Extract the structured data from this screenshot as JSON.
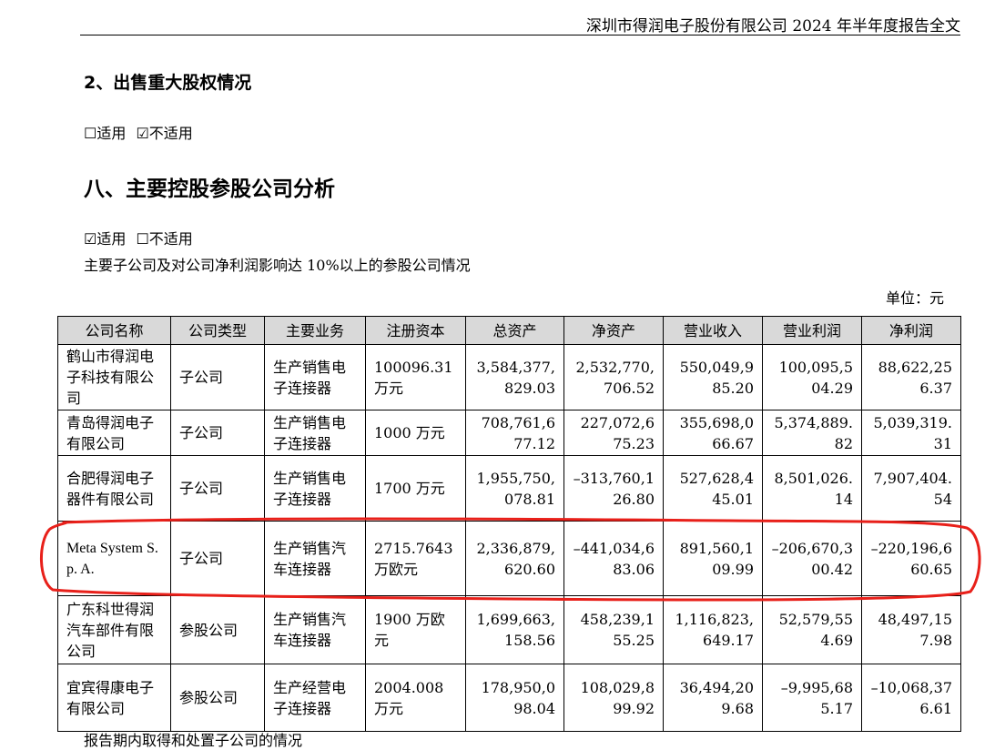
{
  "header": {
    "title": "深圳市得润电子股份有限公司 2024 年半年度报告全文"
  },
  "section2": {
    "title": "2、出售重大股权情况",
    "option_applicable": "☐适用",
    "option_not_applicable": "☑不适用"
  },
  "section8": {
    "title": "八、主要控股参股公司分析",
    "option_applicable": "☑适用",
    "option_not_applicable": "☐不适用",
    "description": "主要子公司及对公司净利润影响达 10%以上的参股公司情况",
    "unit": "单位：元"
  },
  "table": {
    "headers": [
      "公司名称",
      "公司类型",
      "主要业务",
      "注册资本",
      "总资产",
      "净资产",
      "营业收入",
      "营业利润",
      "净利润"
    ],
    "rows": [
      [
        "鹤山市得润电子科技有限公司",
        "子公司",
        "生产销售电子连接器",
        "100096.31万元",
        "3,584,377,829.03",
        "2,532,770,706.52",
        "550,049,985.20",
        "100,095,504.29",
        "88,622,256.37"
      ],
      [
        "青岛得润电子有限公司",
        "子公司",
        "生产销售电子连接器",
        "1000 万元",
        "708,761,677.12",
        "227,072,675.23",
        "355,698,066.67",
        "5,374,889.82",
        "5,039,319.31"
      ],
      [
        "合肥得润电子器件有限公司",
        "子公司",
        "生产销售电子连接器",
        "1700 万元",
        "1,955,750,078.81",
        "–313,760,126.80",
        "527,628,445.01",
        "8,501,026.14",
        "7,907,404.54"
      ],
      [
        "Meta System S. p. A.",
        "子公司",
        "生产销售汽车连接器",
        "2715.7643万欧元",
        "2,336,879,620.60",
        "–441,034,683.06",
        "891,560,109.99",
        "–206,670,300.42",
        "–220,196,660.65"
      ],
      [
        "广东科世得润汽车部件有限公司",
        "参股公司",
        "生产销售汽车连接器",
        "1900 万欧元",
        "1,699,663,158.56",
        "458,239,155.25",
        "1,116,823,649.17",
        "52,579,554.69",
        "48,497,157.98"
      ],
      [
        "宜宾得康电子有限公司",
        "参股公司",
        "生产经营电子连接器",
        "2004.008万元",
        "178,950,098.04",
        "108,029,899.92",
        "36,494,209.68",
        "–9,995,685.17",
        "–10,068,376.61"
      ]
    ]
  },
  "footer": {
    "fragment": "报告期内取得和处置子公司的情况"
  }
}
